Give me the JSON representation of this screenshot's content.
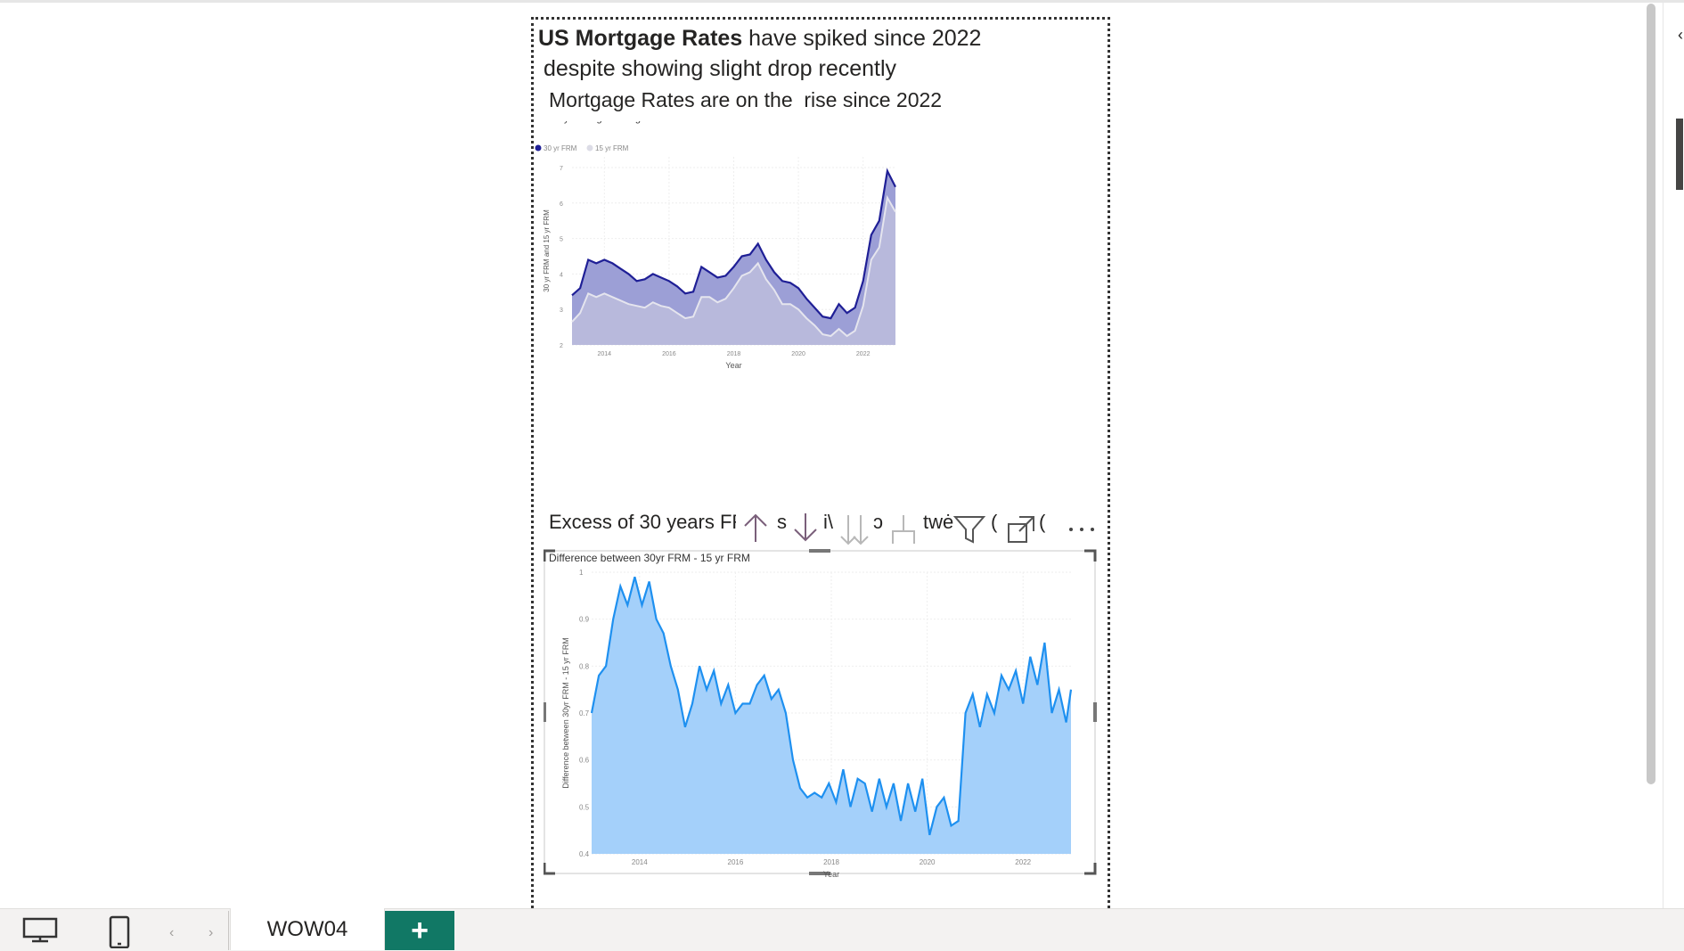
{
  "report": {
    "headline_bold": "US Mortgage Rates",
    "headline_rest": " have spiked since 2022",
    "headline_line2": "despite showing slight drop recently",
    "subtitle1": "Mortgage Rates are on the  rise since 2022",
    "subtitle2_start": "Excess of 30 years FRM",
    "subtitle2_fragments": [
      "s",
      "i\\",
      "ɔ",
      "twė",
      "(",
      "("
    ]
  },
  "bottom_bar": {
    "page_tab": "WOW04",
    "add_page": "+"
  },
  "visual_header_icons": [
    "arrow-up-icon",
    "arrow-down-icon",
    "double-arrow-down-icon",
    "expand-hierarchy-icon",
    "filter-icon",
    "focus-mode-icon",
    "more-options-icon"
  ],
  "colors": {
    "series_30yr": "#1f1f96",
    "fill_30yr": "#9c9fd6",
    "series_15yr": "#e5e5ee",
    "fill_15yr": "#b8b9dc",
    "diff_line": "#1e90f0",
    "diff_fill": "#a4d0fa",
    "add_tab": "#117865"
  },
  "chart_data": [
    {
      "type": "area",
      "title": "Monthly Average Mortage Rates",
      "xlabel": "Year",
      "ylabel": "30 yr FRM and 15 yr FRM",
      "legend": {
        "position": "top-left",
        "entries": [
          "30 yr FRM",
          "15 yr FRM"
        ]
      },
      "x_ticks": [
        "2014",
        "2016",
        "2018",
        "2020",
        "2022"
      ],
      "y_ticks": [
        2,
        3,
        4,
        5,
        6,
        7
      ],
      "ylim": [
        2,
        7.3
      ],
      "xlim": [
        2013.0,
        2023.0
      ],
      "grid": true,
      "x": [
        2013.0,
        2013.25,
        2013.5,
        2013.75,
        2014.0,
        2014.25,
        2014.5,
        2014.75,
        2015.0,
        2015.25,
        2015.5,
        2015.75,
        2016.0,
        2016.25,
        2016.5,
        2016.75,
        2017.0,
        2017.25,
        2017.5,
        2017.75,
        2018.0,
        2018.25,
        2018.5,
        2018.75,
        2019.0,
        2019.25,
        2019.5,
        2019.75,
        2020.0,
        2020.25,
        2020.5,
        2020.75,
        2021.0,
        2021.25,
        2021.5,
        2021.75,
        2022.0,
        2022.25,
        2022.5,
        2022.75,
        2023.0
      ],
      "series": [
        {
          "name": "30 yr FRM",
          "values": [
            3.4,
            3.6,
            4.4,
            4.3,
            4.4,
            4.3,
            4.15,
            4.0,
            3.8,
            3.85,
            4.0,
            3.9,
            3.8,
            3.65,
            3.45,
            3.5,
            4.2,
            4.05,
            3.9,
            3.95,
            4.2,
            4.5,
            4.55,
            4.85,
            4.4,
            4.05,
            3.8,
            3.75,
            3.6,
            3.3,
            3.05,
            2.8,
            2.75,
            3.15,
            2.9,
            3.05,
            3.8,
            5.1,
            5.5,
            6.9,
            6.45
          ]
        },
        {
          "name": "15 yr FRM",
          "values": [
            2.65,
            2.9,
            3.45,
            3.35,
            3.45,
            3.35,
            3.25,
            3.15,
            3.1,
            3.05,
            3.2,
            3.1,
            3.05,
            2.9,
            2.75,
            2.8,
            3.35,
            3.35,
            3.2,
            3.3,
            3.6,
            3.95,
            4.05,
            4.3,
            3.85,
            3.55,
            3.15,
            3.15,
            3.0,
            2.75,
            2.55,
            2.3,
            2.25,
            2.45,
            2.25,
            2.4,
            3.1,
            4.4,
            4.75,
            6.15,
            5.75
          ]
        }
      ]
    },
    {
      "type": "area",
      "title": "Difference between 30yr FRM - 15 yr FRM",
      "xlabel": "Year",
      "ylabel": "Difference between 30yr FRM - 15 yr FRM",
      "x_ticks": [
        "2014",
        "2016",
        "2018",
        "2020",
        "2022"
      ],
      "y_ticks": [
        0.4,
        0.5,
        0.6,
        0.7,
        0.8,
        0.9,
        1.0
      ],
      "ylim": [
        0.4,
        1.0
      ],
      "xlim": [
        2013.0,
        2023.0
      ],
      "grid": true,
      "x": [
        2013.0,
        2013.15,
        2013.3,
        2013.45,
        2013.6,
        2013.75,
        2013.9,
        2014.05,
        2014.2,
        2014.35,
        2014.5,
        2014.65,
        2014.8,
        2014.95,
        2015.1,
        2015.25,
        2015.4,
        2015.55,
        2015.7,
        2015.85,
        2016.0,
        2016.15,
        2016.3,
        2016.45,
        2016.6,
        2016.75,
        2016.9,
        2017.05,
        2017.2,
        2017.35,
        2017.5,
        2017.65,
        2017.8,
        2017.95,
        2018.1,
        2018.25,
        2018.4,
        2018.55,
        2018.7,
        2018.85,
        2019.0,
        2019.15,
        2019.3,
        2019.45,
        2019.6,
        2019.75,
        2019.9,
        2020.05,
        2020.2,
        2020.35,
        2020.5,
        2020.65,
        2020.8,
        2020.95,
        2021.1,
        2021.25,
        2021.4,
        2021.55,
        2021.7,
        2021.85,
        2022.0,
        2022.15,
        2022.3,
        2022.45,
        2022.6,
        2022.75,
        2022.9,
        2023.0
      ],
      "series": [
        {
          "name": "",
          "values": [
            0.7,
            0.78,
            0.8,
            0.9,
            0.97,
            0.93,
            0.99,
            0.93,
            0.98,
            0.9,
            0.87,
            0.8,
            0.75,
            0.67,
            0.72,
            0.8,
            0.75,
            0.79,
            0.72,
            0.76,
            0.7,
            0.72,
            0.72,
            0.76,
            0.78,
            0.73,
            0.75,
            0.7,
            0.6,
            0.54,
            0.52,
            0.53,
            0.52,
            0.55,
            0.51,
            0.58,
            0.5,
            0.56,
            0.55,
            0.49,
            0.56,
            0.5,
            0.55,
            0.47,
            0.55,
            0.49,
            0.56,
            0.44,
            0.5,
            0.52,
            0.46,
            0.47,
            0.7,
            0.74,
            0.67,
            0.74,
            0.7,
            0.78,
            0.75,
            0.79,
            0.72,
            0.82,
            0.76,
            0.85,
            0.7,
            0.75,
            0.68,
            0.75
          ]
        }
      ]
    }
  ]
}
